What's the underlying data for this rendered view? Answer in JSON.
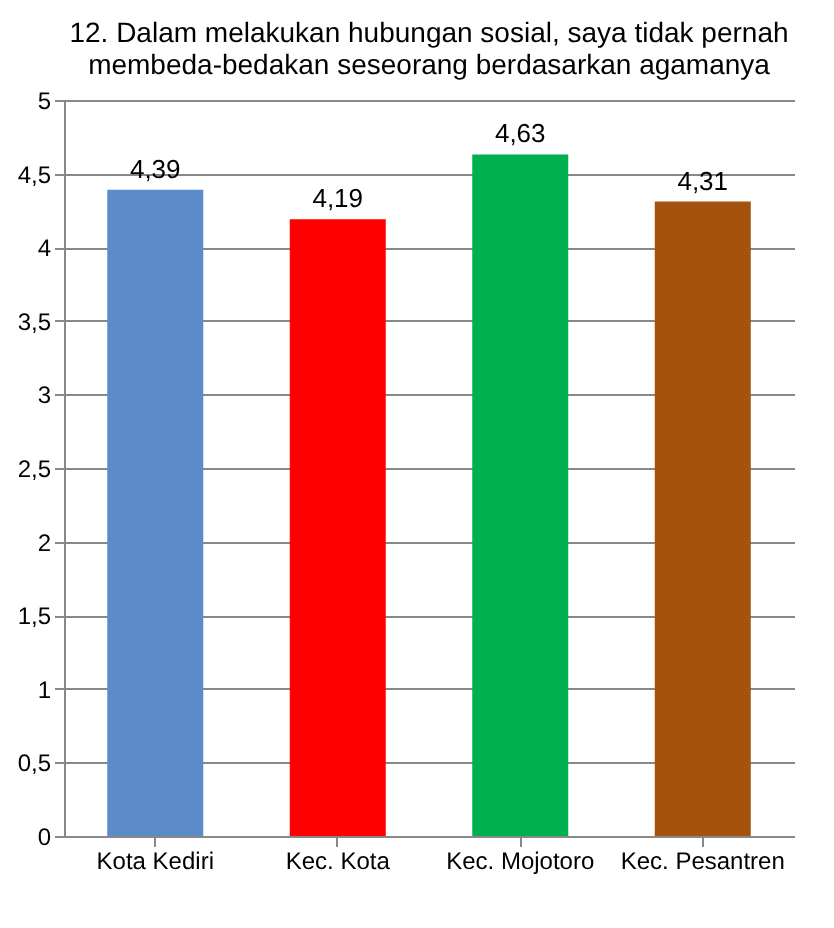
{
  "chart_data": {
    "type": "bar",
    "title": "12.  Dalam melakukan hubungan sosial, saya tidak pernah\nmembeda-bedakan seseorang berdasarkan agamanya",
    "categories": [
      "Kota Kediri",
      "Kec. Kota",
      "Kec. Mojotoro",
      "Kec. Pesantren"
    ],
    "values": [
      4.39,
      4.19,
      4.63,
      4.31
    ],
    "colors": [
      "#5b8bc8",
      "#ff0000",
      "#00b050",
      "#a5520f"
    ],
    "value_labels": [
      "4,39",
      "4,19",
      "4,63",
      "4,31"
    ],
    "ylim": [
      0,
      5
    ],
    "yticks": [
      0,
      {
        "value": 0.5,
        "label": "0,5"
      },
      1,
      {
        "value": 1.5,
        "label": "1,5"
      },
      2,
      {
        "value": 2.5,
        "label": "2,5"
      },
      3,
      {
        "value": 3.5,
        "label": "3,5"
      },
      4,
      {
        "value": 4.5,
        "label": "4,5"
      },
      5
    ],
    "grid": "y"
  }
}
